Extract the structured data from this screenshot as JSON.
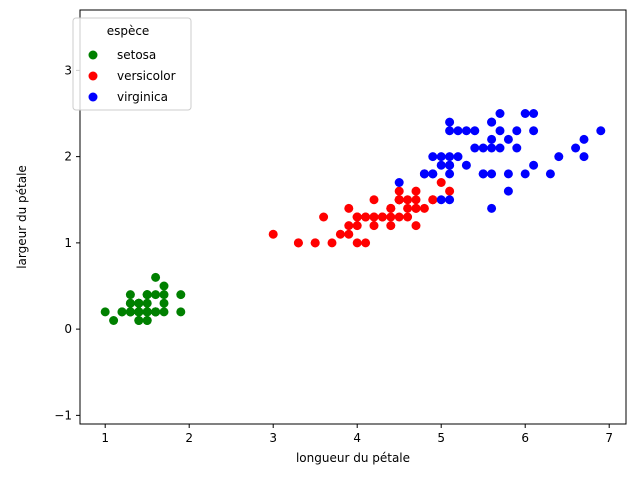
{
  "chart_data": {
    "type": "scatter",
    "xlabel": "longueur du pétale",
    "ylabel": "largeur du pétale",
    "xlim": [
      0.7,
      7.2
    ],
    "ylim": [
      -1.1,
      3.7
    ],
    "xticks": [
      1,
      2,
      3,
      4,
      5,
      6,
      7
    ],
    "yticks": [
      -1,
      0,
      1,
      2,
      3
    ],
    "grid": false,
    "legend": {
      "title": "espèce",
      "placement": "top-left"
    },
    "series": [
      {
        "name": "setosa",
        "color": "#008000",
        "points": [
          [
            1.4,
            0.2
          ],
          [
            1.4,
            0.2
          ],
          [
            1.3,
            0.2
          ],
          [
            1.5,
            0.2
          ],
          [
            1.4,
            0.2
          ],
          [
            1.7,
            0.4
          ],
          [
            1.4,
            0.3
          ],
          [
            1.5,
            0.2
          ],
          [
            1.4,
            0.2
          ],
          [
            1.5,
            0.1
          ],
          [
            1.5,
            0.2
          ],
          [
            1.6,
            0.2
          ],
          [
            1.4,
            0.1
          ],
          [
            1.1,
            0.1
          ],
          [
            1.2,
            0.2
          ],
          [
            1.5,
            0.4
          ],
          [
            1.3,
            0.4
          ],
          [
            1.4,
            0.3
          ],
          [
            1.7,
            0.3
          ],
          [
            1.5,
            0.3
          ],
          [
            1.7,
            0.2
          ],
          [
            1.5,
            0.4
          ],
          [
            1.0,
            0.2
          ],
          [
            1.7,
            0.5
          ],
          [
            1.9,
            0.2
          ],
          [
            1.6,
            0.2
          ],
          [
            1.6,
            0.4
          ],
          [
            1.5,
            0.2
          ],
          [
            1.4,
            0.2
          ],
          [
            1.6,
            0.2
          ],
          [
            1.6,
            0.2
          ],
          [
            1.5,
            0.4
          ],
          [
            1.5,
            0.1
          ],
          [
            1.4,
            0.2
          ],
          [
            1.5,
            0.2
          ],
          [
            1.2,
            0.2
          ],
          [
            1.3,
            0.2
          ],
          [
            1.4,
            0.1
          ],
          [
            1.3,
            0.2
          ],
          [
            1.5,
            0.2
          ],
          [
            1.3,
            0.3
          ],
          [
            1.3,
            0.3
          ],
          [
            1.3,
            0.2
          ],
          [
            1.6,
            0.6
          ],
          [
            1.9,
            0.4
          ],
          [
            1.4,
            0.3
          ],
          [
            1.6,
            0.2
          ],
          [
            1.4,
            0.2
          ],
          [
            1.5,
            0.2
          ],
          [
            1.4,
            0.2
          ]
        ]
      },
      {
        "name": "versicolor",
        "color": "#ff0000",
        "points": [
          [
            4.7,
            1.4
          ],
          [
            4.5,
            1.5
          ],
          [
            4.9,
            1.5
          ],
          [
            4.0,
            1.3
          ],
          [
            4.6,
            1.5
          ],
          [
            4.5,
            1.3
          ],
          [
            4.7,
            1.6
          ],
          [
            3.3,
            1.0
          ],
          [
            4.6,
            1.3
          ],
          [
            3.9,
            1.4
          ],
          [
            3.5,
            1.0
          ],
          [
            4.2,
            1.5
          ],
          [
            4.0,
            1.0
          ],
          [
            4.7,
            1.4
          ],
          [
            3.6,
            1.3
          ],
          [
            4.4,
            1.4
          ],
          [
            4.5,
            1.5
          ],
          [
            4.1,
            1.0
          ],
          [
            4.5,
            1.5
          ],
          [
            3.9,
            1.1
          ],
          [
            4.8,
            1.8
          ],
          [
            4.0,
            1.3
          ],
          [
            4.9,
            1.5
          ],
          [
            4.7,
            1.2
          ],
          [
            4.3,
            1.3
          ],
          [
            4.4,
            1.4
          ],
          [
            4.8,
            1.4
          ],
          [
            5.0,
            1.7
          ],
          [
            4.5,
            1.5
          ],
          [
            3.5,
            1.0
          ],
          [
            3.8,
            1.1
          ],
          [
            3.7,
            1.0
          ],
          [
            3.9,
            1.2
          ],
          [
            5.1,
            1.6
          ],
          [
            4.5,
            1.5
          ],
          [
            4.5,
            1.6
          ],
          [
            4.7,
            1.5
          ],
          [
            4.4,
            1.3
          ],
          [
            4.1,
            1.3
          ],
          [
            4.0,
            1.3
          ],
          [
            4.4,
            1.2
          ],
          [
            4.6,
            1.4
          ],
          [
            4.0,
            1.2
          ],
          [
            3.3,
            1.0
          ],
          [
            4.2,
            1.3
          ],
          [
            4.2,
            1.2
          ],
          [
            4.2,
            1.3
          ],
          [
            4.3,
            1.3
          ],
          [
            3.0,
            1.1
          ],
          [
            4.1,
            1.3
          ]
        ]
      },
      {
        "name": "virginica",
        "color": "#0000ff",
        "points": [
          [
            6.0,
            2.5
          ],
          [
            5.1,
            1.9
          ],
          [
            5.9,
            2.1
          ],
          [
            5.6,
            1.8
          ],
          [
            5.8,
            2.2
          ],
          [
            6.6,
            2.1
          ],
          [
            4.5,
            1.7
          ],
          [
            6.3,
            1.8
          ],
          [
            5.8,
            1.8
          ],
          [
            6.1,
            2.5
          ],
          [
            5.1,
            2.0
          ],
          [
            5.3,
            1.9
          ],
          [
            5.5,
            2.1
          ],
          [
            5.0,
            2.0
          ],
          [
            5.1,
            2.4
          ],
          [
            5.3,
            2.3
          ],
          [
            5.5,
            1.8
          ],
          [
            6.7,
            2.2
          ],
          [
            6.9,
            2.3
          ],
          [
            5.0,
            1.5
          ],
          [
            5.7,
            2.3
          ],
          [
            4.9,
            2.0
          ],
          [
            6.7,
            2.0
          ],
          [
            4.9,
            1.8
          ],
          [
            5.7,
            2.1
          ],
          [
            6.0,
            1.8
          ],
          [
            4.8,
            1.8
          ],
          [
            4.9,
            1.8
          ],
          [
            5.6,
            2.1
          ],
          [
            5.8,
            1.6
          ],
          [
            6.1,
            1.9
          ],
          [
            6.4,
            2.0
          ],
          [
            5.6,
            2.2
          ],
          [
            5.1,
            1.5
          ],
          [
            5.6,
            1.4
          ],
          [
            6.1,
            2.3
          ],
          [
            5.6,
            2.4
          ],
          [
            5.5,
            1.8
          ],
          [
            4.8,
            1.8
          ],
          [
            5.4,
            2.1
          ],
          [
            5.6,
            2.4
          ],
          [
            5.1,
            2.3
          ],
          [
            5.1,
            1.9
          ],
          [
            5.9,
            2.3
          ],
          [
            5.7,
            2.5
          ],
          [
            5.2,
            2.3
          ],
          [
            5.0,
            1.9
          ],
          [
            5.2,
            2.0
          ],
          [
            5.4,
            2.3
          ],
          [
            5.1,
            1.8
          ]
        ]
      }
    ]
  }
}
